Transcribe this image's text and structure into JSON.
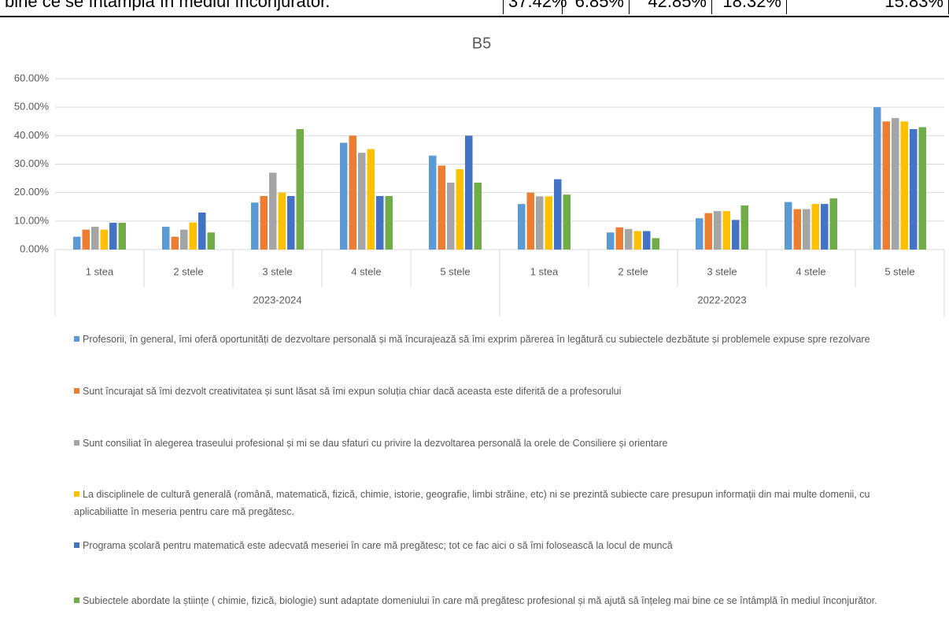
{
  "table": {
    "rows": [
      [
        "bine ce se întâmplă în mediul înconjurător.",
        "37.42%",
        "6.85%",
        "42.85%",
        "18.32%",
        "15.83%"
      ]
    ]
  },
  "chart_data": {
    "type": "bar",
    "title": "B5",
    "categories": [
      "1 stea",
      "2 stele",
      "3 stele",
      "4 stele",
      "5 stele",
      "1 stea",
      "2 stele",
      "3 stele",
      "4 stele",
      "5 stele"
    ],
    "groups": [
      "2023-2024",
      "2022-2023"
    ],
    "ylim": [
      0,
      60
    ],
    "yticks": [
      {
        "value": 0,
        "label": "0.00%"
      },
      {
        "value": 10,
        "label": "10.00%"
      },
      {
        "value": 20,
        "label": "20.00%"
      },
      {
        "value": 30,
        "label": "30.00%"
      },
      {
        "value": 40,
        "label": "40.00%"
      },
      {
        "value": 50,
        "label": "50.00%"
      },
      {
        "value": 60,
        "label": "60.00%"
      }
    ],
    "grid": true,
    "series": [
      {
        "name": "Profesorii, în general, îmi oferă oportunități de dezvoltare personală și mă încurajează să îmi exprim părerea în legătură cu subiectele dezbătute și problemele expuse spre rezolvare",
        "color": "#5b9bd5",
        "values": [
          4.5,
          8,
          16.5,
          37.5,
          33,
          16,
          6,
          11,
          16.7,
          50
        ]
      },
      {
        "name": "Sunt încurajat să îmi dezvolt creativitatea  și sunt lăsat să îmi expun soluția chiar dacă aceasta este diferită de a profesorului",
        "color": "#ed7d31",
        "values": [
          7,
          4.5,
          18.8,
          40,
          29.5,
          20,
          7.8,
          12.8,
          14.2,
          45
        ]
      },
      {
        "name": "Sunt consiliat în alegerea traseului profesional și mi se dau sfaturi cu privire la dezvoltarea personală la orele de Consiliere și orientare",
        "color": "#a5a5a5",
        "values": [
          8,
          7,
          27,
          34,
          23.5,
          18.7,
          7.2,
          13.5,
          14.2,
          46.2
        ]
      },
      {
        "name": "La disciplinele de cultură generală (română, matematică, fizică, chimie, istorie, geografie, limbi străine, etc) ni se prezintă subiecte care presupun informații din mai multe domenii, cu aplicabiliatte în meseria pentru care mă pregătesc.",
        "color": "#ffc000",
        "values": [
          7,
          9.5,
          20,
          35.3,
          28.2,
          18.7,
          6.5,
          13.5,
          16,
          45
        ]
      },
      {
        "name": "Programa școlară pentru matematică este adecvată meseriei în care mă pregătesc; tot ce fac aici o să îmi folosească la locul de muncă",
        "color": "#4472c4",
        "values": [
          9.4,
          13,
          18.8,
          18.8,
          40,
          24.7,
          6.5,
          10.4,
          16,
          42.3
        ]
      },
      {
        "name": "Subiectele abordate la științe ( chimie, fizică, biologie) sunt adaptate domeniului în care mă pregătesc profesional și mă ajută să înțeleg mai bine ce se întâmplă în mediul înconjurător.",
        "color": "#70ad47",
        "values": [
          9.4,
          6,
          42.3,
          18.8,
          23.5,
          19.3,
          4,
          15.5,
          18,
          43
        ]
      }
    ]
  }
}
